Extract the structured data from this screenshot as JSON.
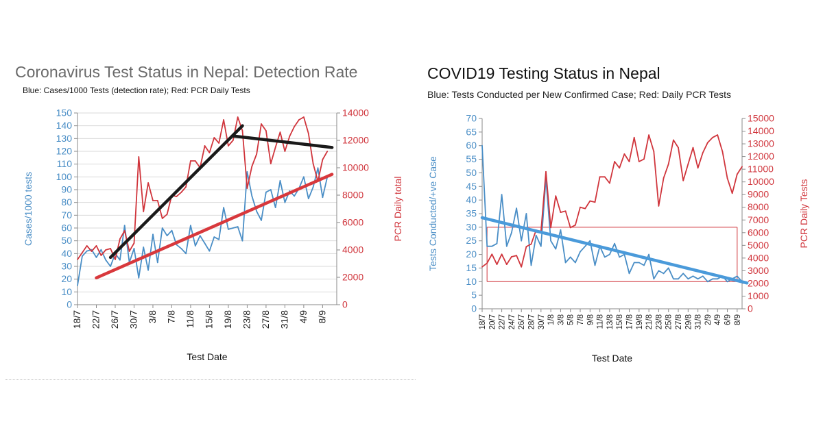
{
  "colors": {
    "blue": "#4a8ec6",
    "red": "#d0353c",
    "trend_red": "#d8383c",
    "trend_blue": "#4a9ada",
    "trend_black": "#1a1a1a",
    "axis": "#8a8a8a",
    "grid": "#d9d9d9"
  },
  "left": {
    "title": "Coronavirus Test Status in Nepal: Detection Rate",
    "subtitle": "Blue: Cases/1000 Tests (detection rate); Red: PCR Daily Tests"
  },
  "right": {
    "title": "COVID19 Testing Status in Nepal",
    "subtitle": "Blue: Tests Conducted per New Confirmed Case; Red: Daily PCR Tests"
  },
  "chart_data": [
    {
      "type": "line",
      "title": "Coronavirus Test Status in Nepal: Detection Rate",
      "subtitle": "Blue: Cases/1000 Tests (detection rate); Red: PCR Daily Tests",
      "xlabel": "Test Date",
      "ylabel_left": "Cases/1000 tests",
      "ylabel_right": "PCR Daily total",
      "ylim_left": [
        0,
        150
      ],
      "ylim_right": [
        0,
        14000
      ],
      "yticks_left": [
        0,
        10,
        20,
        30,
        40,
        50,
        60,
        70,
        80,
        90,
        100,
        110,
        120,
        130,
        140,
        150
      ],
      "yticks_right": [
        0,
        2000,
        4000,
        6000,
        8000,
        10000,
        12000,
        14000
      ],
      "xticks": [
        "18/7",
        "22/7",
        "26/7",
        "30/7",
        "3/8",
        "7/8",
        "11/8",
        "15/8",
        "19/8",
        "23/8",
        "27/8",
        "31/8",
        "4/9",
        "8/9"
      ],
      "x_start": "2020-07-18",
      "series": [
        {
          "name": "Cases/1000 Tests (detection rate)",
          "axis": "left",
          "color": "blue",
          "values": [
            15,
            38,
            42,
            43,
            37,
            43,
            35,
            30,
            40,
            35,
            62,
            33,
            44,
            21,
            45,
            27,
            55,
            33,
            60,
            54,
            58,
            47,
            44,
            40,
            62,
            46,
            54,
            48,
            42,
            53,
            51,
            76,
            59,
            60,
            61,
            50,
            104,
            85,
            73,
            66,
            88,
            90,
            76,
            97,
            80,
            89,
            85,
            91,
            100,
            83,
            92,
            107,
            84,
            100
          ]
        },
        {
          "name": "PCR Daily Tests",
          "axis": "right",
          "color": "red",
          "values": [
            3300,
            3800,
            4300,
            3900,
            4300,
            3600,
            4000,
            4100,
            3300,
            4800,
            5400,
            3900,
            4500,
            10800,
            6800,
            8900,
            7600,
            7600,
            6300,
            6600,
            8000,
            7900,
            8200,
            8600,
            10500,
            10500,
            10000,
            11600,
            11100,
            12200,
            11800,
            13500,
            11600,
            12000,
            13700,
            12700,
            8500,
            10100,
            11000,
            13200,
            12700,
            10300,
            11500,
            12600,
            11200,
            12300,
            13000,
            13500,
            13700,
            12500,
            10300,
            9000,
            10600,
            11200
          ]
        }
      ],
      "trend_lines": [
        {
          "color": "trend_black",
          "axis": "left",
          "points": [
            [
              "2020-07-25",
              37
            ],
            [
              "2020-08-22",
              140
            ]
          ]
        },
        {
          "color": "trend_black",
          "axis": "left",
          "points": [
            [
              "2020-08-20",
              132
            ],
            [
              "2020-09-10",
              123
            ]
          ]
        },
        {
          "color": "trend_red",
          "axis": "left",
          "points": [
            [
              "2020-07-22",
              21
            ],
            [
              "2020-09-10",
              102
            ]
          ]
        }
      ]
    },
    {
      "type": "line",
      "title": "COVID19 Testing Status in Nepal",
      "subtitle": "Blue: Tests Conducted per New Confirmed Case; Red: Daily PCR Tests",
      "xlabel": "Test Date",
      "ylabel_left": "Tests Conducted/+ve Case",
      "ylabel_right": "PCR Daily Tests",
      "ylim_left": [
        0,
        70
      ],
      "ylim_right": [
        0,
        15000
      ],
      "yticks_left": [
        0,
        5,
        10,
        15,
        20,
        25,
        30,
        35,
        40,
        45,
        50,
        55,
        60,
        65,
        70
      ],
      "yticks_right": [
        0,
        1000,
        2000,
        3000,
        4000,
        5000,
        6000,
        7000,
        8000,
        9000,
        10000,
        11000,
        12000,
        13000,
        14000,
        15000
      ],
      "xticks": [
        "18/7",
        "20/7",
        "22/7",
        "24/7",
        "26/7",
        "28/7",
        "30/7",
        "1/8",
        "3/8",
        "5/8",
        "7/8",
        "9/8",
        "11/8",
        "13/8",
        "15/8",
        "17/8",
        "19/8",
        "21/8",
        "23/8",
        "25/8",
        "27/8",
        "29/8",
        "31/8",
        "2/9",
        "4/9",
        "6/9",
        "8/9"
      ],
      "x_start": "2020-07-18",
      "series": [
        {
          "name": "Tests Conducted per New Confirmed Case",
          "axis": "left",
          "color": "blue",
          "values": [
            60,
            23,
            23,
            24,
            42,
            23,
            28,
            37,
            25,
            35,
            16,
            27,
            23,
            48,
            25,
            22,
            29,
            17,
            19,
            17,
            21,
            23,
            25,
            16,
            23,
            19,
            20,
            24,
            19,
            20,
            13,
            17,
            17,
            16,
            20,
            11,
            14,
            13,
            15,
            11,
            11,
            13,
            11,
            12,
            11,
            12,
            10,
            11,
            11,
            12,
            10,
            11,
            12,
            10
          ]
        },
        {
          "name": "Daily PCR Tests",
          "axis": "right",
          "color": "red",
          "values": [
            3300,
            3600,
            4300,
            3500,
            4300,
            3500,
            4100,
            4200,
            3300,
            4900,
            5100,
            6200,
            6100,
            10800,
            6400,
            8900,
            7600,
            7700,
            6400,
            6600,
            8000,
            7900,
            8500,
            8400,
            10400,
            10400,
            9900,
            11600,
            11100,
            12200,
            11600,
            13500,
            11600,
            11800,
            13700,
            12400,
            8100,
            10300,
            11400,
            13300,
            12700,
            10100,
            11400,
            12700,
            11100,
            12300,
            13100,
            13500,
            13700,
            12400,
            10300,
            9100,
            10600,
            11200
          ]
        }
      ],
      "reference_lines_left": [
        10,
        30
      ],
      "trend_lines": [
        {
          "color": "trend_blue",
          "axis": "left",
          "points": [
            [
              "2020-07-18",
              33.5
            ],
            [
              "2020-09-10",
              9.5
            ]
          ]
        }
      ]
    }
  ]
}
